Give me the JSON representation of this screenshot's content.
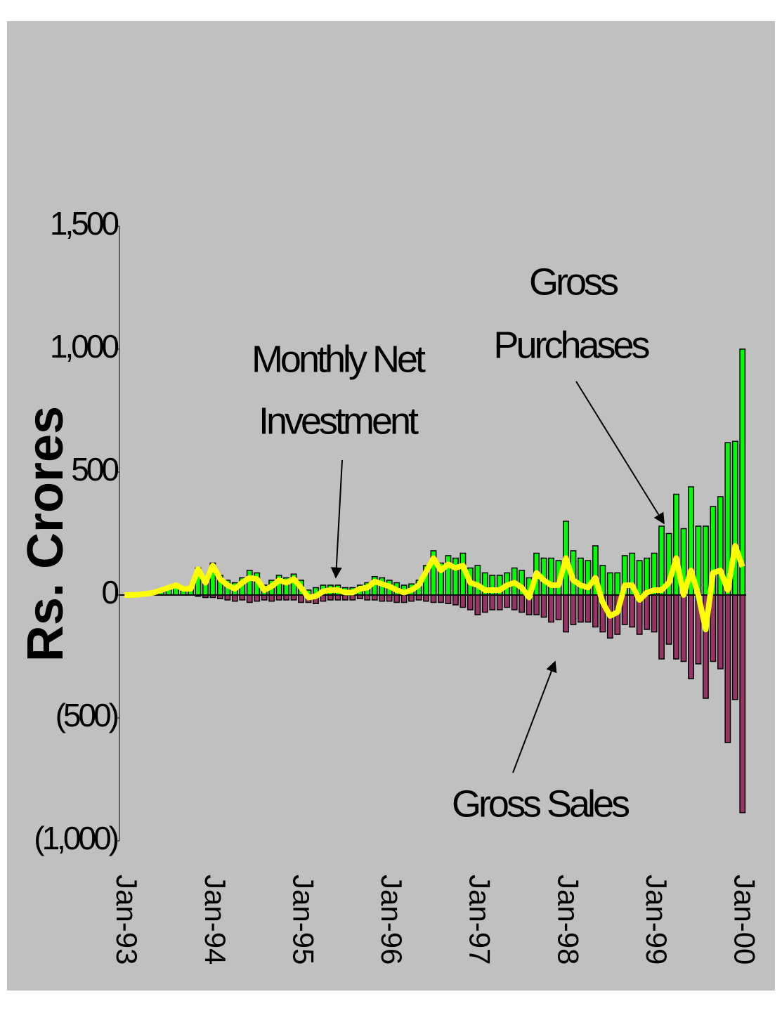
{
  "chart_data": {
    "type": "bar",
    "y_label": "Rs. Crores",
    "categories": [
      "Jan-93",
      null,
      null,
      null,
      null,
      null,
      null,
      null,
      null,
      null,
      null,
      null,
      "Jan-94",
      null,
      null,
      null,
      null,
      null,
      null,
      null,
      null,
      null,
      null,
      null,
      "Jan-95",
      null,
      null,
      null,
      null,
      null,
      null,
      null,
      null,
      null,
      null,
      null,
      "Jan-96",
      null,
      null,
      null,
      null,
      null,
      null,
      null,
      null,
      null,
      null,
      null,
      "Jan-97",
      null,
      null,
      null,
      null,
      null,
      null,
      null,
      null,
      null,
      null,
      null,
      "Jan-98",
      null,
      null,
      null,
      null,
      null,
      null,
      null,
      null,
      null,
      null,
      null,
      "Jan-99",
      null,
      null,
      null,
      null,
      null,
      null,
      null,
      null,
      null,
      null,
      null,
      "Jan-00"
    ],
    "series": [
      {
        "name": "Gross Purchases",
        "color": "#00ff00",
        "values": [
          0,
          0,
          2,
          5,
          10,
          20,
          30,
          40,
          25,
          25,
          110,
          60,
          130,
          80,
          60,
          50,
          70,
          100,
          90,
          40,
          60,
          80,
          70,
          85,
          60,
          20,
          30,
          40,
          40,
          40,
          30,
          30,
          40,
          50,
          75,
          70,
          60,
          50,
          40,
          45,
          60,
          120,
          180,
          130,
          160,
          150,
          170,
          110,
          120,
          90,
          80,
          80,
          90,
          110,
          100,
          70,
          170,
          150,
          150,
          140,
          300,
          180,
          150,
          140,
          200,
          120,
          90,
          90,
          160,
          170,
          140,
          150,
          170,
          280,
          250,
          410,
          270,
          440,
          280,
          280,
          360,
          400,
          620,
          625,
          1000
        ]
      },
      {
        "name": "Gross Sales",
        "color": "#993366",
        "values": [
          0,
          0,
          0,
          0,
          0,
          0,
          0,
          0,
          0,
          0,
          -5,
          -10,
          -10,
          -15,
          -20,
          -25,
          -20,
          -30,
          -25,
          -20,
          -25,
          -20,
          -20,
          -20,
          -30,
          -30,
          -35,
          -25,
          -20,
          -20,
          -20,
          -20,
          -15,
          -20,
          -20,
          -25,
          -25,
          -30,
          -30,
          -25,
          -20,
          -25,
          -30,
          -30,
          -35,
          -40,
          -50,
          -60,
          -80,
          -70,
          -60,
          -60,
          -50,
          -60,
          -70,
          -80,
          -80,
          -90,
          -110,
          -100,
          -150,
          -120,
          -110,
          -110,
          -130,
          -150,
          -175,
          -160,
          -120,
          -130,
          -160,
          -140,
          -150,
          -260,
          -200,
          -260,
          -270,
          -340,
          -280,
          -420,
          -270,
          -300,
          -600,
          -425,
          -885
        ]
      },
      {
        "name": "Monthly Net Investment",
        "color": "#ffff00",
        "type": "line",
        "values": [
          0,
          0,
          2,
          5,
          10,
          20,
          30,
          40,
          25,
          25,
          105,
          50,
          120,
          65,
          40,
          25,
          50,
          70,
          65,
          20,
          35,
          60,
          50,
          65,
          30,
          -10,
          -5,
          15,
          20,
          20,
          10,
          10,
          25,
          30,
          55,
          45,
          35,
          20,
          10,
          20,
          40,
          95,
          150,
          100,
          125,
          110,
          120,
          50,
          40,
          20,
          20,
          20,
          40,
          50,
          30,
          -10,
          90,
          60,
          40,
          40,
          150,
          60,
          40,
          30,
          70,
          -30,
          -85,
          -70,
          40,
          40,
          -20,
          10,
          20,
          20,
          50,
          150,
          0,
          100,
          0,
          -140,
          90,
          100,
          20,
          200,
          115
        ]
      }
    ],
    "annotations": [
      [
        "Gross",
        "Purchases"
      ],
      [
        "Monthly Net",
        "Investment"
      ],
      [
        "Gross Sales"
      ]
    ],
    "ylim": [
      -1000,
      1500
    ],
    "yticks": [
      {
        "value": -1000,
        "label": "(1,000)"
      },
      {
        "value": -500,
        "label": "(500)"
      },
      0,
      500,
      {
        "value": 1000,
        "label": "1,000"
      },
      {
        "value": 1500,
        "label": "1,500"
      }
    ]
  }
}
